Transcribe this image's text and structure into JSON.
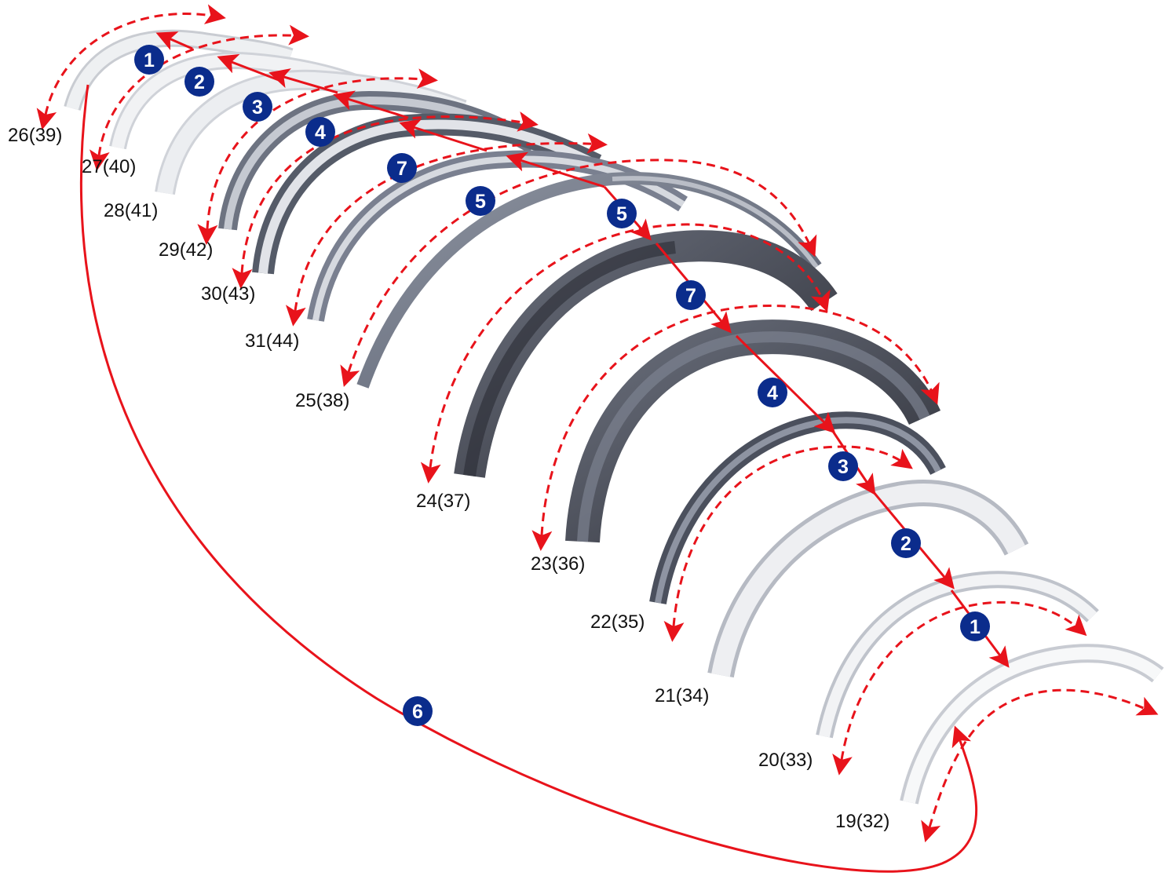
{
  "diagram": {
    "part_labels": [
      {
        "id": "p26",
        "text": "26(39)"
      },
      {
        "id": "p27",
        "text": "27(40)"
      },
      {
        "id": "p28",
        "text": "28(41)"
      },
      {
        "id": "p29",
        "text": "29(42)"
      },
      {
        "id": "p30",
        "text": "30(43)"
      },
      {
        "id": "p31",
        "text": "31(44)"
      },
      {
        "id": "p25",
        "text": "25(38)"
      },
      {
        "id": "p24",
        "text": "24(37)"
      },
      {
        "id": "p23",
        "text": "23(36)"
      },
      {
        "id": "p22",
        "text": "22(35)"
      },
      {
        "id": "p21",
        "text": "21(34)"
      },
      {
        "id": "p20",
        "text": "20(33)"
      },
      {
        "id": "p19",
        "text": "19(32)"
      }
    ],
    "step_badges": [
      {
        "id": "b1a",
        "text": "1"
      },
      {
        "id": "b2a",
        "text": "2"
      },
      {
        "id": "b3a",
        "text": "3"
      },
      {
        "id": "b4a",
        "text": "4"
      },
      {
        "id": "b7a",
        "text": "7"
      },
      {
        "id": "b5a",
        "text": "5"
      },
      {
        "id": "b5b",
        "text": "5"
      },
      {
        "id": "b7b",
        "text": "7"
      },
      {
        "id": "b4b",
        "text": "4"
      },
      {
        "id": "b3b",
        "text": "3"
      },
      {
        "id": "b2b",
        "text": "2"
      },
      {
        "id": "b1b",
        "text": "1"
      },
      {
        "id": "b6",
        "text": "6"
      }
    ],
    "colors": {
      "arrow": "#e8131b",
      "badge": "#0b2c8c",
      "badge_text": "#ffffff",
      "label": "#111111"
    }
  }
}
